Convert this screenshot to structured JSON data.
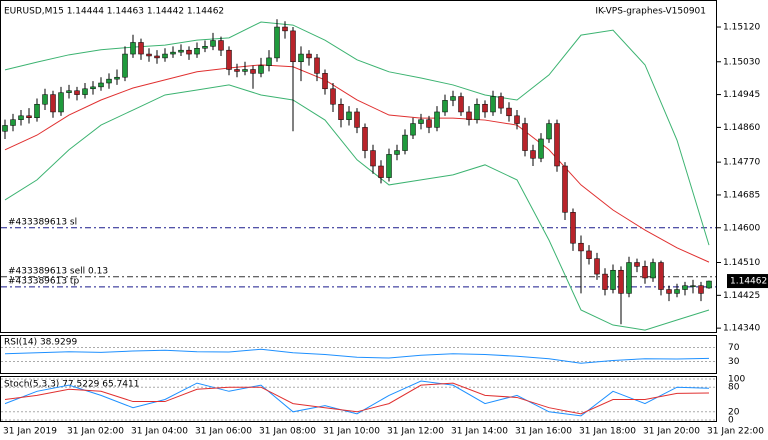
{
  "chart_data": [
    {
      "type": "candlestick",
      "title": "EURUSD,M15  1.14444 1.14463 1.14442 1.14462",
      "subtitle": "IK-VPS-graphes-V150901",
      "up_color": "#1f9a3c",
      "down_color": "#b8232a",
      "open": [
        1.1485,
        1.14865,
        1.1488,
        1.1489,
        1.14885,
        1.1492,
        1.14945,
        1.149,
        1.1495,
        1.14955,
        1.14945,
        1.1496,
        1.14965,
        1.14975,
        1.14985,
        1.1499,
        1.1505,
        1.1508,
        1.1505,
        1.15045,
        1.1504,
        1.1505,
        1.15055,
        1.1506,
        1.1505,
        1.15065,
        1.1507,
        1.15085,
        1.1506,
        1.1501,
        1.15005,
        1.1501,
        1.15,
        1.1502,
        1.1504,
        1.1512,
        1.1511,
        1.1503,
        1.1505,
        1.1504,
        1.15,
        1.1496,
        1.1492,
        1.1488,
        1.149,
        1.1486,
        1.148,
        1.1476,
        1.1473,
        1.1479,
        1.148,
        1.1484,
        1.1487,
        1.1488,
        1.1486,
        1.149,
        1.1493,
        1.1494,
        1.149,
        1.1488,
        1.1492,
        1.149,
        1.1494,
        1.1491,
        1.1489,
        1.1487,
        1.148,
        1.1478,
        1.1483,
        1.1487,
        1.1476,
        1.1464,
        1.1456,
        1.1454,
        1.1452,
        1.1448,
        1.1444,
        1.1449,
        1.1443,
        1.1451,
        1.145,
        1.1447,
        1.1451,
        1.1444,
        1.1443,
        1.1444,
        1.1445,
        1.1445,
        1.14444
      ],
      "high": [
        1.1488,
        1.14895,
        1.14905,
        1.1491,
        1.14935,
        1.1496,
        1.14955,
        1.14965,
        1.1497,
        1.14965,
        1.14975,
        1.1498,
        1.1499,
        1.15,
        1.1501,
        1.1507,
        1.151,
        1.1509,
        1.15065,
        1.1506,
        1.15065,
        1.1507,
        1.15075,
        1.1507,
        1.1508,
        1.15085,
        1.15105,
        1.15095,
        1.1507,
        1.15025,
        1.1503,
        1.1502,
        1.1504,
        1.1506,
        1.1514,
        1.15135,
        1.1512,
        1.1507,
        1.1506,
        1.1505,
        1.1501,
        1.14975,
        1.14935,
        1.14915,
        1.1491,
        1.1487,
        1.14815,
        1.14775,
        1.14805,
        1.14815,
        1.14855,
        1.14885,
        1.14895,
        1.1489,
        1.14915,
        1.14945,
        1.14955,
        1.1495,
        1.14915,
        1.14935,
        1.1493,
        1.14955,
        1.1495,
        1.14925,
        1.14905,
        1.14885,
        1.14815,
        1.14845,
        1.1488,
        1.1488,
        1.1477,
        1.1465,
        1.1458,
        1.14555,
        1.14535,
        1.14495,
        1.14505,
        1.145,
        1.14525,
        1.1452,
        1.14515,
        1.1452,
        1.14515,
        1.1445,
        1.14455,
        1.1446,
        1.14465,
        1.1446,
        1.14463
      ],
      "low": [
        1.1483,
        1.1485,
        1.14865,
        1.1487,
        1.14875,
        1.14905,
        1.14885,
        1.1489,
        1.14935,
        1.1493,
        1.14935,
        1.14945,
        1.14955,
        1.1496,
        1.1497,
        1.1498,
        1.1504,
        1.15035,
        1.1503,
        1.15025,
        1.1503,
        1.1504,
        1.15045,
        1.15035,
        1.1504,
        1.15055,
        1.1506,
        1.15045,
        1.14995,
        1.1499,
        1.14995,
        1.1496,
        1.1499,
        1.15005,
        1.1503,
        1.1509,
        1.1485,
        1.1498,
        1.1502,
        1.1498,
        1.14945,
        1.149,
        1.1486,
        1.14865,
        1.14845,
        1.1478,
        1.1474,
        1.14715,
        1.1472,
        1.14775,
        1.1479,
        1.1483,
        1.14855,
        1.14845,
        1.1485,
        1.1489,
        1.14915,
        1.1489,
        1.14865,
        1.1487,
        1.14885,
        1.1489,
        1.14895,
        1.14875,
        1.14855,
        1.14785,
        1.1476,
        1.1477,
        1.1482,
        1.14745,
        1.1462,
        1.1454,
        1.1443,
        1.14505,
        1.14465,
        1.14425,
        1.1443,
        1.1435,
        1.1442,
        1.14485,
        1.14455,
        1.1446,
        1.14425,
        1.1441,
        1.1442,
        1.14425,
        1.1443,
        1.1441,
        1.14442
      ],
      "close": [
        1.14865,
        1.1488,
        1.1489,
        1.14885,
        1.1492,
        1.14945,
        1.149,
        1.1495,
        1.14955,
        1.14945,
        1.1496,
        1.14965,
        1.14975,
        1.14985,
        1.1499,
        1.1505,
        1.1508,
        1.1505,
        1.15045,
        1.1504,
        1.1505,
        1.15055,
        1.1506,
        1.1505,
        1.15065,
        1.1507,
        1.15085,
        1.1506,
        1.1501,
        1.15005,
        1.1501,
        1.15,
        1.1502,
        1.1504,
        1.1512,
        1.1511,
        1.1503,
        1.1505,
        1.1504,
        1.15,
        1.1496,
        1.1492,
        1.1488,
        1.149,
        1.1486,
        1.148,
        1.1476,
        1.1473,
        1.1479,
        1.148,
        1.1484,
        1.1487,
        1.1488,
        1.1486,
        1.149,
        1.1493,
        1.1494,
        1.149,
        1.1488,
        1.1492,
        1.149,
        1.1494,
        1.1491,
        1.1489,
        1.1487,
        1.148,
        1.1478,
        1.1483,
        1.1487,
        1.1476,
        1.1464,
        1.1456,
        1.1454,
        1.1452,
        1.1448,
        1.1444,
        1.1449,
        1.1443,
        1.1451,
        1.145,
        1.1447,
        1.1451,
        1.1444,
        1.1443,
        1.1444,
        1.1445,
        1.1445,
        1.1443,
        1.14462
      ],
      "series": [
        {
          "color": "#3cb371",
          "values": [
            1.15009,
            1.15029,
            1.15048,
            1.15061,
            1.15068,
            1.15073,
            1.15086,
            1.15092,
            1.15133,
            1.15125,
            1.15086,
            1.15035,
            1.15004,
            1.14988,
            1.1497,
            1.14944,
            1.14931,
            1.14996,
            1.15099,
            1.15112,
            1.15022,
            1.14827,
            1.14555
          ]
        },
        {
          "color": "#3cb371",
          "values": [
            1.14672,
            1.14724,
            1.14802,
            1.14866,
            1.14905,
            1.14944,
            1.14957,
            1.1497,
            1.14944,
            1.14931,
            1.14879,
            1.14776,
            1.14711,
            1.14724,
            1.14737,
            1.14763,
            1.14724,
            1.14568,
            1.14387,
            1.14348,
            1.14335,
            1.14361,
            1.14387
          ]
        },
        {
          "color": "#e03030",
          "values": [
            1.14802,
            1.1484,
            1.14892,
            1.14931,
            1.14962,
            1.14983,
            1.15004,
            1.15014,
            1.15022,
            1.15017,
            1.14983,
            1.14931,
            1.14892,
            1.14884,
            1.14884,
            1.14879,
            1.14866,
            1.14802,
            1.14711,
            1.14646,
            1.14594,
            1.14548,
            1.14511
          ]
        }
      ],
      "levels": [
        {
          "label": "#433389613 sl",
          "value": 1.146,
          "color": "#1a1a8c"
        },
        {
          "label": "#433389613 sell 0.13",
          "value": 1.14473,
          "color": "#333333"
        },
        {
          "label": "#433389613 tp",
          "value": 1.14447,
          "color": "#1a1a8c"
        }
      ],
      "last_price": {
        "value": 1.14462,
        "label": "1.14462"
      },
      "ylim": [
        1.1433,
        1.1519
      ],
      "yticks": [
        {
          "value": 1.1512,
          "label": "1.15120"
        },
        {
          "value": 1.1503,
          "label": "1.15030"
        },
        {
          "value": 1.14945,
          "label": "1.14945"
        },
        {
          "value": 1.1486,
          "label": "1.14860"
        },
        {
          "value": 1.1477,
          "label": "1.14770"
        },
        {
          "value": 1.14685,
          "label": "1.14685"
        },
        {
          "value": 1.146,
          "label": "1.14600"
        },
        {
          "value": 1.1451,
          "label": "1.14510"
        },
        {
          "value": 1.14425,
          "label": "1.14425"
        },
        {
          "value": 1.1434,
          "label": "1.14340"
        }
      ],
      "xticks": [
        "31 Jan 2019",
        "31 Jan 02:00",
        "31 Jan 04:00",
        "31 Jan 06:00",
        "31 Jan 08:00",
        "31 Jan 10:00",
        "31 Jan 12:00",
        "31 Jan 14:00",
        "31 Jan 16:00",
        "31 Jan 18:00",
        "31 Jan 20:00",
        "31 Jan 22:00"
      ]
    },
    {
      "type": "line",
      "title": "RSI(14) 38.9299",
      "series": [
        {
          "color": "#1e90ff",
          "values": [
            52,
            55,
            58,
            56,
            60,
            62,
            58,
            57,
            65,
            55,
            50,
            42,
            40,
            48,
            52,
            50,
            45,
            38,
            25,
            33,
            38,
            37,
            38.93
          ]
        }
      ],
      "ylim": [
        0,
        100
      ],
      "yticks": [
        70,
        30
      ]
    },
    {
      "type": "line",
      "title": "Stoch(5,3,3) 77.5229 65.7411",
      "series": [
        {
          "color": "#1e90ff",
          "values": [
            40,
            70,
            85,
            60,
            30,
            50,
            90,
            70,
            85,
            20,
            35,
            15,
            60,
            95,
            85,
            40,
            60,
            20,
            10,
            70,
            40,
            80,
            77.52
          ]
        },
        {
          "color": "#e03030",
          "values": [
            50,
            60,
            75,
            70,
            45,
            45,
            75,
            80,
            80,
            40,
            30,
            20,
            40,
            85,
            90,
            60,
            55,
            30,
            15,
            50,
            50,
            65,
            65.74
          ]
        }
      ],
      "ylim": [
        0,
        100
      ],
      "yticks": [
        100,
        80,
        20,
        0
      ]
    }
  ]
}
